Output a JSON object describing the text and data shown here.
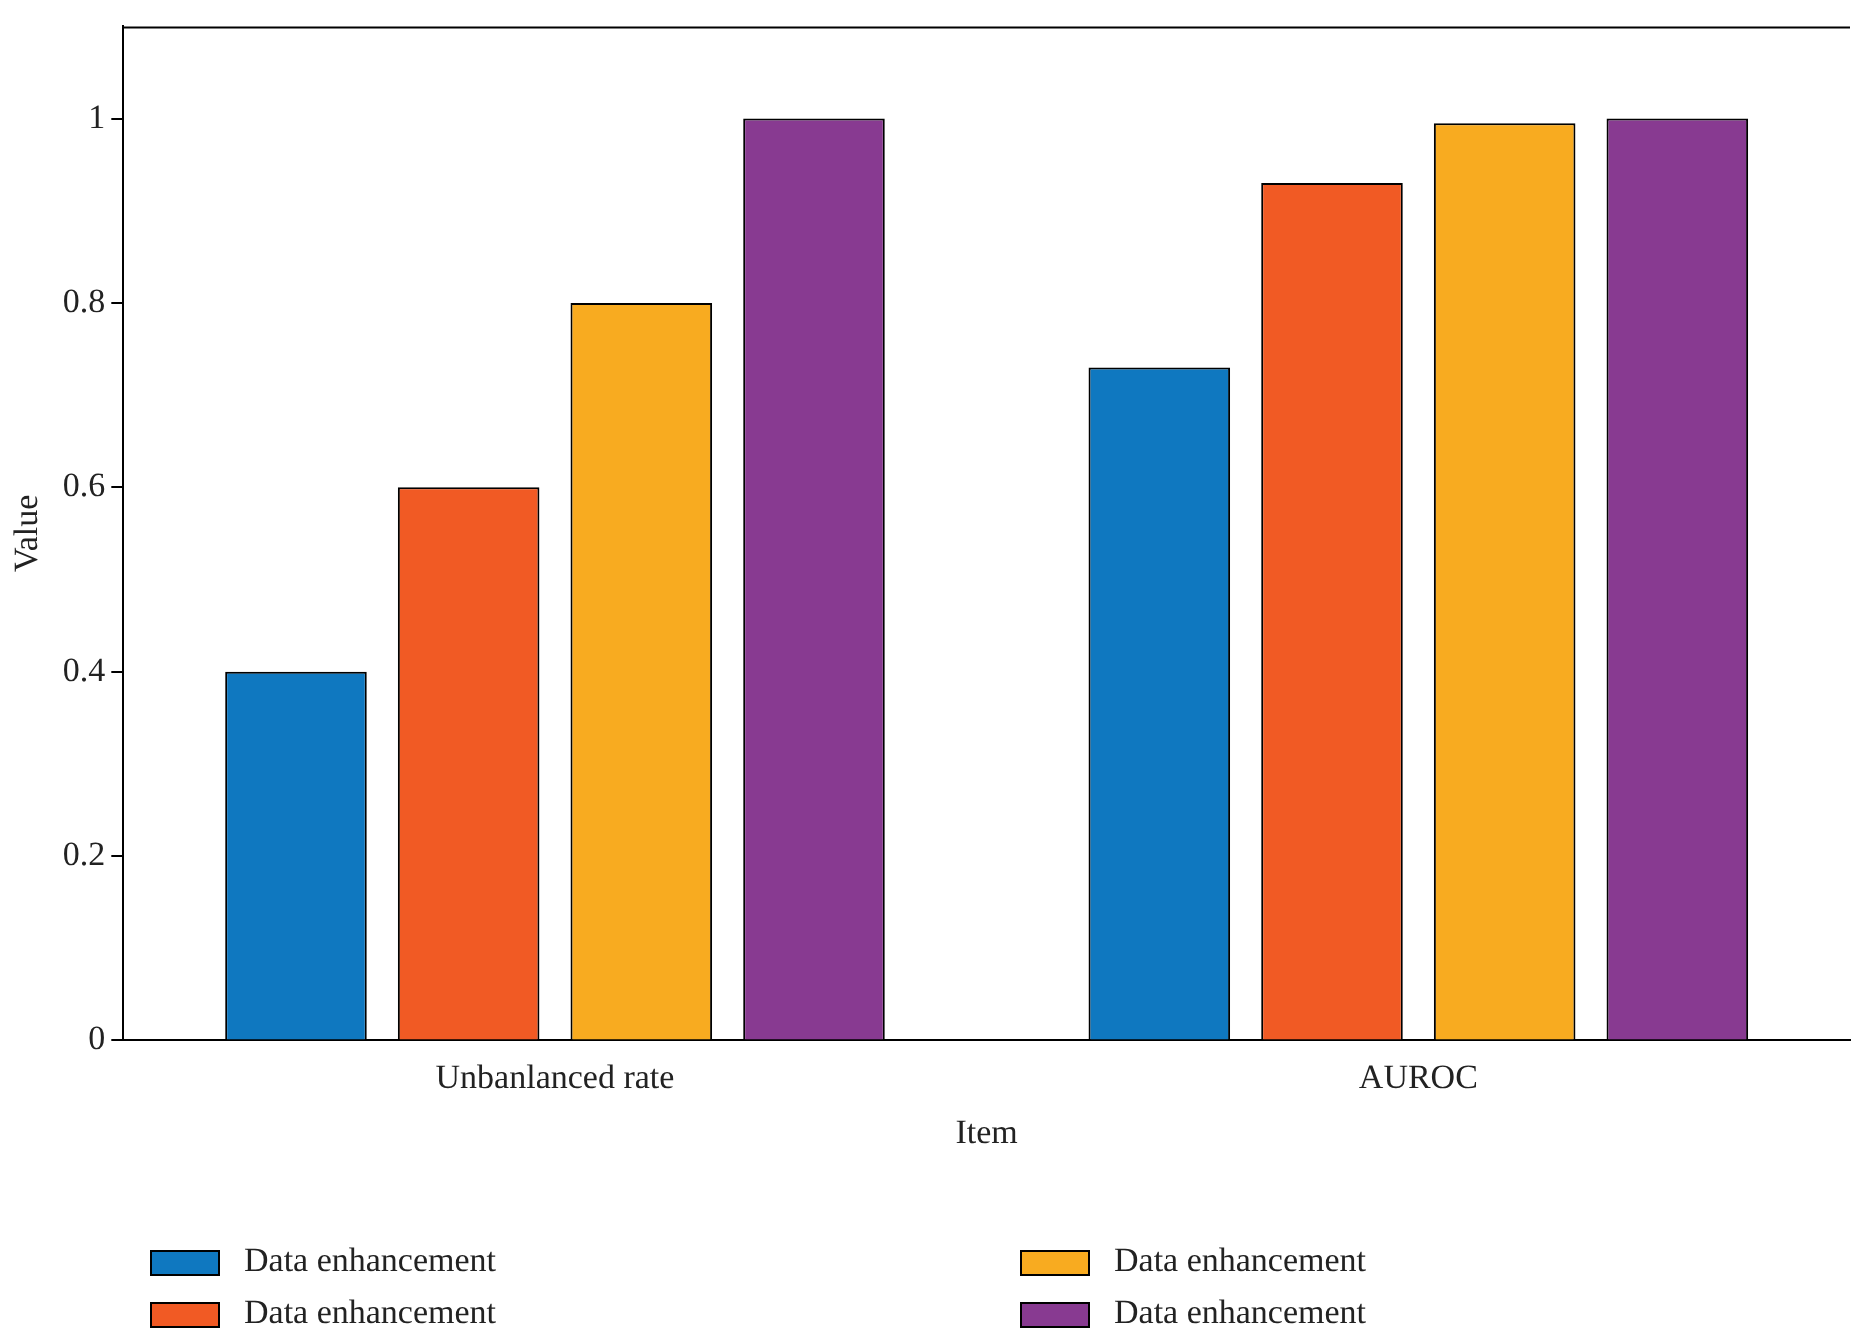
{
  "chart_data": {
    "type": "bar",
    "xlabel": "Item",
    "ylabel": "Value",
    "categories": [
      "Unbanlanced rate",
      "AUROC"
    ],
    "series": [
      {
        "name": "Data enhancement",
        "color": "#0f78c0",
        "values": [
          0.4,
          0.73
        ]
      },
      {
        "name": "Data enhancement",
        "color": "#f15a24",
        "values": [
          0.6,
          0.93
        ]
      },
      {
        "name": "Data enhancement",
        "color": "#f8ab20",
        "values": [
          0.8,
          0.995
        ]
      },
      {
        "name": "Data enhancement",
        "color": "#883a91",
        "values": [
          1.0,
          1.0
        ]
      }
    ],
    "ylim": [
      0,
      1.1
    ],
    "yticks": [
      0,
      0.2,
      0.4,
      0.6,
      0.8,
      1
    ],
    "grid": false,
    "legend": "bottom"
  }
}
